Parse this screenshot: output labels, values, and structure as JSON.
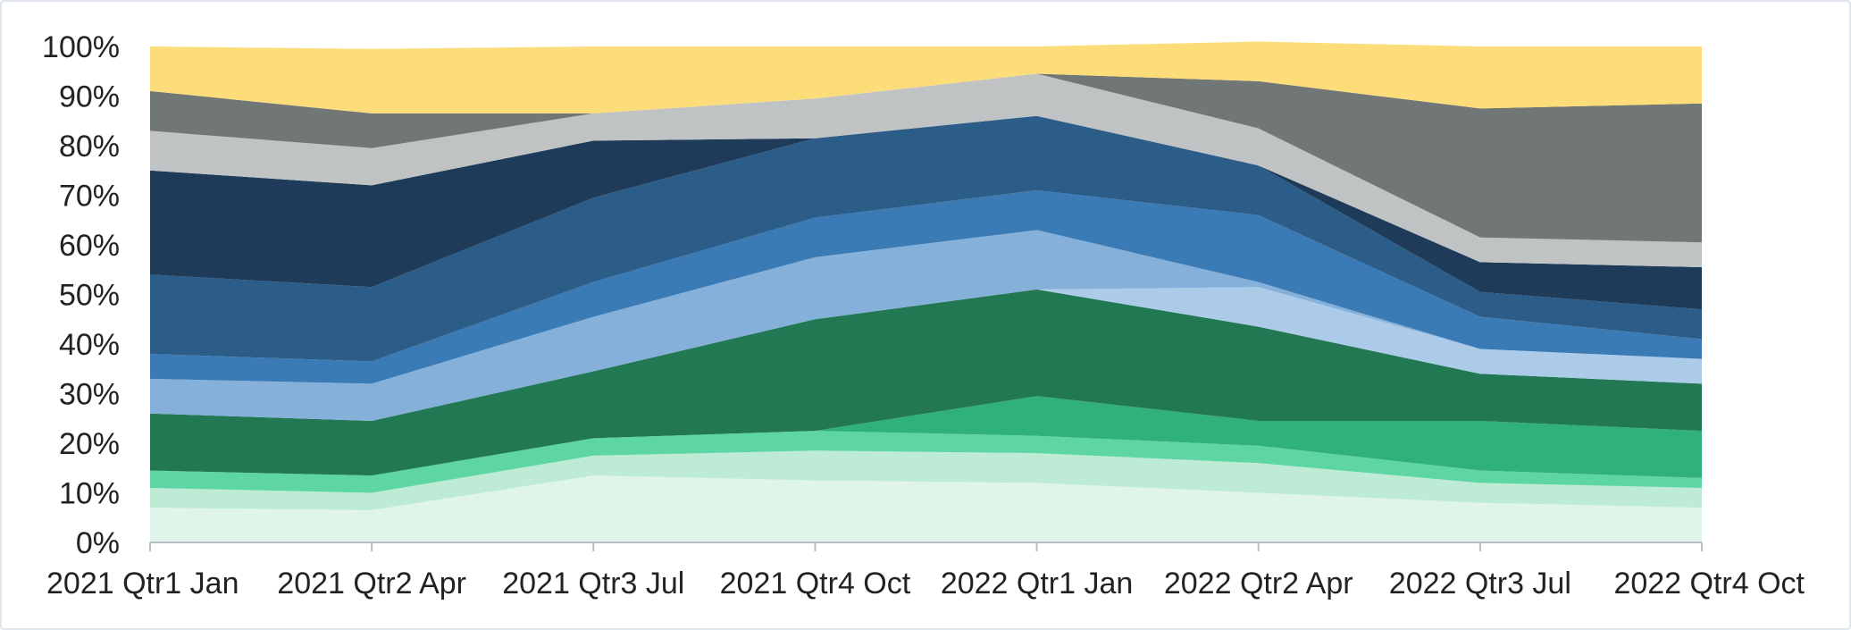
{
  "chart_data": {
    "type": "area",
    "stacked": true,
    "normalized": true,
    "title": "",
    "xlabel": "",
    "ylabel": "",
    "ylim": [
      0,
      100
    ],
    "y_ticks": [
      "0%",
      "10%",
      "20%",
      "30%",
      "40%",
      "50%",
      "60%",
      "70%",
      "80%",
      "90%",
      "100%"
    ],
    "grid": false,
    "legend": "none",
    "categories": [
      "2021 Qtr1 Jan",
      "2021 Qtr2 Apr",
      "2021 Qtr3 Jul",
      "2021 Qtr4 Oct",
      "2022 Qtr1 Jan",
      "2022 Qtr2 Apr",
      "2022 Qtr3 Jul",
      "2022 Qtr4 Oct"
    ],
    "series": [
      {
        "color": "#dff5ea",
        "values": [
          7,
          6.5,
          13.5,
          12.5,
          12,
          10,
          8,
          7
        ]
      },
      {
        "color": "#bdebd6",
        "values": [
          4,
          3.5,
          4,
          6,
          6,
          6,
          4,
          4
        ]
      },
      {
        "color": "#5ed6a3",
        "values": [
          3.5,
          3.5,
          3.5,
          4,
          3.5,
          3.5,
          2.5,
          2
        ]
      },
      {
        "color": "#30b07a",
        "values": [
          0,
          0,
          0,
          0,
          8,
          5,
          10,
          9.5
        ]
      },
      {
        "color": "#217853",
        "values": [
          11.5,
          11,
          13.5,
          22.5,
          21.5,
          19,
          9.5,
          9.5
        ]
      },
      {
        "color": "#accbe8",
        "values": [
          0,
          0,
          0,
          0,
          0,
          8,
          5,
          5
        ]
      },
      {
        "color": "#84b0da",
        "values": [
          7,
          7.5,
          11,
          12.5,
          12,
          1,
          0,
          0
        ]
      },
      {
        "color": "#3a7ab5",
        "values": [
          5,
          4.5,
          7,
          8,
          8,
          13.5,
          6.5,
          4
        ]
      },
      {
        "color": "#2c5c88",
        "values": [
          16,
          15,
          17,
          16,
          15,
          10,
          5,
          6
        ]
      },
      {
        "color": "#1e3b59",
        "values": [
          21,
          20.5,
          11.5,
          0,
          0,
          0,
          6,
          8.5
        ]
      },
      {
        "color": "#c0c3c4",
        "values": [
          8,
          7.5,
          5.5,
          8,
          8.5,
          7.5,
          5,
          5
        ]
      },
      {
        "color": "#717777",
        "values": [
          8,
          7,
          0,
          0,
          0,
          9.5,
          26,
          28
        ]
      },
      {
        "color": "#fcdd7a",
        "values": [
          9,
          13,
          13.5,
          10.5,
          5.5,
          8,
          12.5,
          11.5
        ]
      }
    ]
  }
}
